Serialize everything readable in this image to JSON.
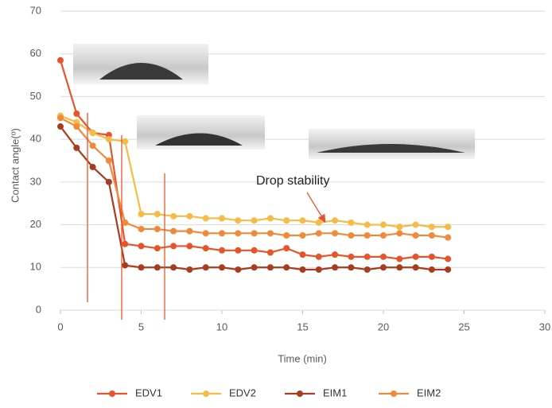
{
  "chart_data": {
    "type": "line",
    "x_label": "Time (min)",
    "y_label": "Contact angle(º)",
    "annotation": "Drop stability",
    "x": [
      0,
      1,
      2,
      3,
      4,
      5,
      6,
      7,
      8,
      9,
      10,
      11,
      12,
      13,
      14,
      15,
      16,
      17,
      18,
      19,
      20,
      21,
      22,
      23,
      24
    ],
    "series": [
      {
        "name": "EDV1",
        "color": "#e8542a",
        "values": [
          58.5,
          46,
          41.5,
          41,
          15.5,
          15,
          14.5,
          15,
          15,
          14.5,
          14,
          14,
          14,
          13.5,
          14.5,
          13,
          12.5,
          13,
          12.5,
          12.5,
          12.5,
          12,
          12.5,
          12.5,
          12
        ]
      },
      {
        "name": "EDV2",
        "color": "#f6bb45",
        "values": [
          45.5,
          44,
          41.5,
          40,
          39.5,
          22.5,
          22.5,
          22,
          22,
          21.5,
          21.5,
          21,
          21,
          21.5,
          21,
          21,
          20.5,
          21,
          20.5,
          20,
          20,
          19.5,
          20,
          19.5,
          19.5
        ]
      },
      {
        "name": "EIM1",
        "color": "#a83c1e",
        "values": [
          43,
          38,
          33.5,
          30,
          10.5,
          10,
          10,
          10,
          9.5,
          10,
          10,
          9.5,
          10,
          10,
          10,
          9.5,
          9.5,
          10,
          10,
          9.5,
          10,
          10,
          10,
          9.5,
          9.5
        ]
      },
      {
        "name": "EIM2",
        "color": "#f08a3a",
        "values": [
          45,
          43,
          38.5,
          35,
          20.5,
          19,
          19,
          18.5,
          18.5,
          18,
          18,
          18,
          18,
          18,
          17.5,
          17.5,
          18,
          18,
          17.5,
          17.5,
          17.5,
          18,
          17.5,
          17.5,
          17
        ]
      }
    ],
    "xlim": [
      0,
      30
    ],
    "xticks": [
      0,
      5,
      10,
      15,
      20,
      25,
      30
    ],
    "ylim": [
      0,
      70
    ],
    "yticks": [
      0,
      10,
      20,
      30,
      40,
      50,
      60,
      70
    ],
    "grid": true,
    "legend": "bottom"
  }
}
